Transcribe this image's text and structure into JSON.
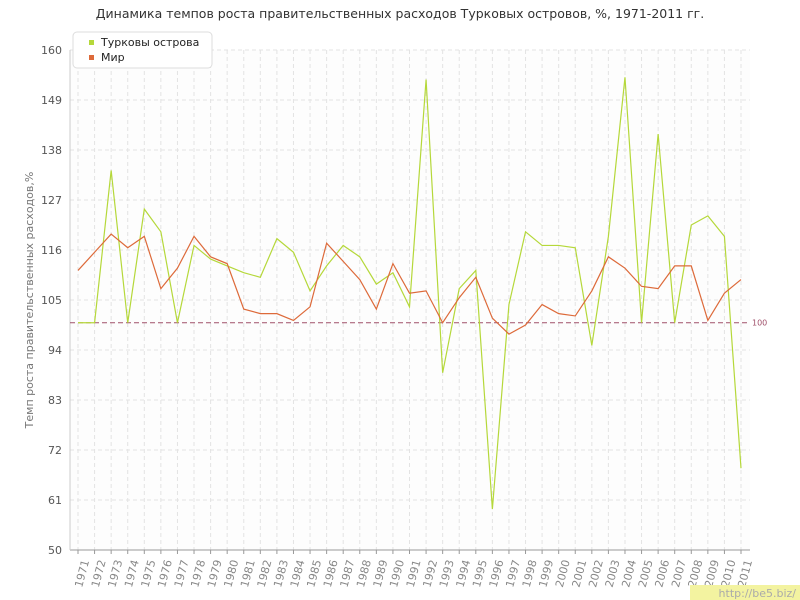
{
  "chart_data": {
    "type": "line",
    "title": "Динамика темпов роста правительственных расходов Турковых островов, %, 1971-2011 гг.",
    "y_label": "Темп роста правительственных расходов,%",
    "categories": [
      "1971",
      "1972",
      "1973",
      "1974",
      "1975",
      "1976",
      "1977",
      "1978",
      "1979",
      "1980",
      "1981",
      "1982",
      "1983",
      "1984",
      "1985",
      "1986",
      "1987",
      "1988",
      "1989",
      "1990",
      "1991",
      "1992",
      "1993",
      "1994",
      "1995",
      "1996",
      "1997",
      "1998",
      "1999",
      "2000",
      "2001",
      "2002",
      "2003",
      "2004",
      "2005",
      "2006",
      "2007",
      "2008",
      "2009",
      "2010",
      "2011"
    ],
    "series": [
      {
        "name": "Турковы острова",
        "color": "#b5d83a",
        "values": [
          100,
          100,
          133.5,
          100,
          125,
          120,
          100,
          117,
          114,
          112.5,
          111,
          110,
          118.5,
          115.5,
          107,
          112.5,
          117,
          114.5,
          108.5,
          111,
          103.5,
          153.5,
          89,
          107.5,
          111.5,
          59,
          104,
          120,
          117,
          117,
          116.5,
          95,
          119,
          154,
          100,
          141.5,
          100,
          121.5,
          123.5,
          119,
          68
        ]
      },
      {
        "name": "Мир",
        "color": "#dd6a3a",
        "values": [
          111.5,
          115.5,
          119.5,
          116.5,
          119,
          107.5,
          112,
          119,
          114.5,
          113,
          103,
          102,
          102,
          100.5,
          103.5,
          117.5,
          113.5,
          109.5,
          103,
          113,
          106.5,
          107,
          100,
          105.5,
          110,
          101,
          97.5,
          99.5,
          104,
          102,
          101.5,
          107,
          114.5,
          112,
          108,
          107.5,
          112.5,
          112.5,
          100.5,
          106.5,
          109.5
        ]
      }
    ],
    "ylim": [
      50,
      160
    ],
    "yticks": [
      50,
      61,
      72,
      83,
      94,
      105,
      116,
      127,
      138,
      149,
      160
    ],
    "grid": true,
    "legend": "top-left",
    "reference_line": {
      "value": 100,
      "label": "100",
      "color": "#a0506a"
    },
    "watermark": "http://be5.biz/"
  }
}
